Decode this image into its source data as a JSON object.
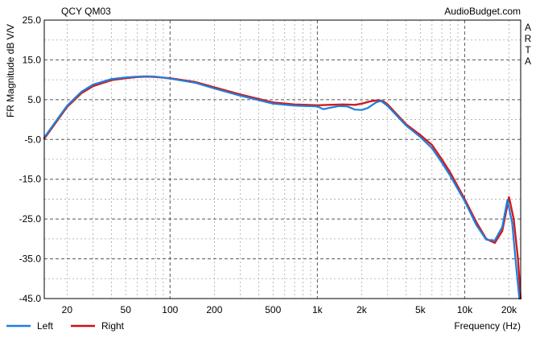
{
  "chart_data": {
    "type": "line",
    "title": "QCY QM03",
    "source": "AudioBudget.com",
    "watermark": "ARTA",
    "ylabel": "FR Magnitude dB V/V",
    "xlabel": "Frequency (Hz)",
    "x_scale": "log",
    "xlim": [
      14,
      24000
    ],
    "ylim": [
      -45,
      25
    ],
    "y_ticks": [
      25.0,
      15.0,
      5.0,
      -5.0,
      -15.0,
      -25.0,
      -35.0,
      -45.0
    ],
    "y_tick_labels": [
      "25.0",
      "15.0",
      "5.0",
      "-5.0",
      "-15.0",
      "-25.0",
      "-35.0",
      "-45.0"
    ],
    "x_ticks": [
      20,
      50,
      100,
      200,
      500,
      1000,
      2000,
      5000,
      10000,
      20000
    ],
    "x_tick_labels": [
      "20",
      "50",
      "100",
      "200",
      "500",
      "1k",
      "2k",
      "5k",
      "10k",
      "20k"
    ],
    "grid": true,
    "legend_position": "bottom-left",
    "series": [
      {
        "name": "Left",
        "color": "#1f7fe0",
        "x": [
          14,
          16,
          20,
          25,
          30,
          40,
          50,
          60,
          70,
          80,
          100,
          150,
          200,
          300,
          500,
          700,
          1000,
          1100,
          1200,
          1400,
          1600,
          1800,
          2000,
          2200,
          2500,
          2700,
          3000,
          4000,
          5000,
          6000,
          7000,
          8000,
          10000,
          12000,
          14000,
          16000,
          18000,
          19500,
          21000,
          22500,
          23500
        ],
        "y": [
          -4.5,
          -1.5,
          3.5,
          7.0,
          8.8,
          10.2,
          10.6,
          10.8,
          10.9,
          10.8,
          10.3,
          9.2,
          7.8,
          6.0,
          4.0,
          3.5,
          3.3,
          2.6,
          2.9,
          3.4,
          3.3,
          2.5,
          2.4,
          2.9,
          4.3,
          4.7,
          3.4,
          -1.5,
          -4.4,
          -7.2,
          -10.8,
          -14.2,
          -20.5,
          -26.5,
          -30.2,
          -30.4,
          -27.0,
          -20.2,
          -26.0,
          -38.0,
          -45.0
        ]
      },
      {
        "name": "Right",
        "color": "#cc1010",
        "x": [
          14,
          16,
          20,
          25,
          30,
          40,
          50,
          60,
          70,
          80,
          100,
          150,
          200,
          300,
          500,
          700,
          1000,
          1200,
          1500,
          1800,
          2000,
          2300,
          2600,
          2800,
          3000,
          4000,
          5000,
          6000,
          7000,
          8000,
          10000,
          12000,
          14000,
          16000,
          18000,
          20000,
          21500,
          23000,
          24000
        ],
        "y": [
          -4.8,
          -1.8,
          3.2,
          6.6,
          8.4,
          9.9,
          10.4,
          10.7,
          10.8,
          10.7,
          10.4,
          9.4,
          8.1,
          6.3,
          4.3,
          3.8,
          3.6,
          3.7,
          3.8,
          3.7,
          4.0,
          4.6,
          4.9,
          4.6,
          3.8,
          -1.2,
          -3.9,
          -6.4,
          -10.0,
          -13.4,
          -20.0,
          -25.8,
          -30.0,
          -31.0,
          -28.0,
          -19.5,
          -25.0,
          -35.0,
          -45.0
        ]
      }
    ]
  }
}
